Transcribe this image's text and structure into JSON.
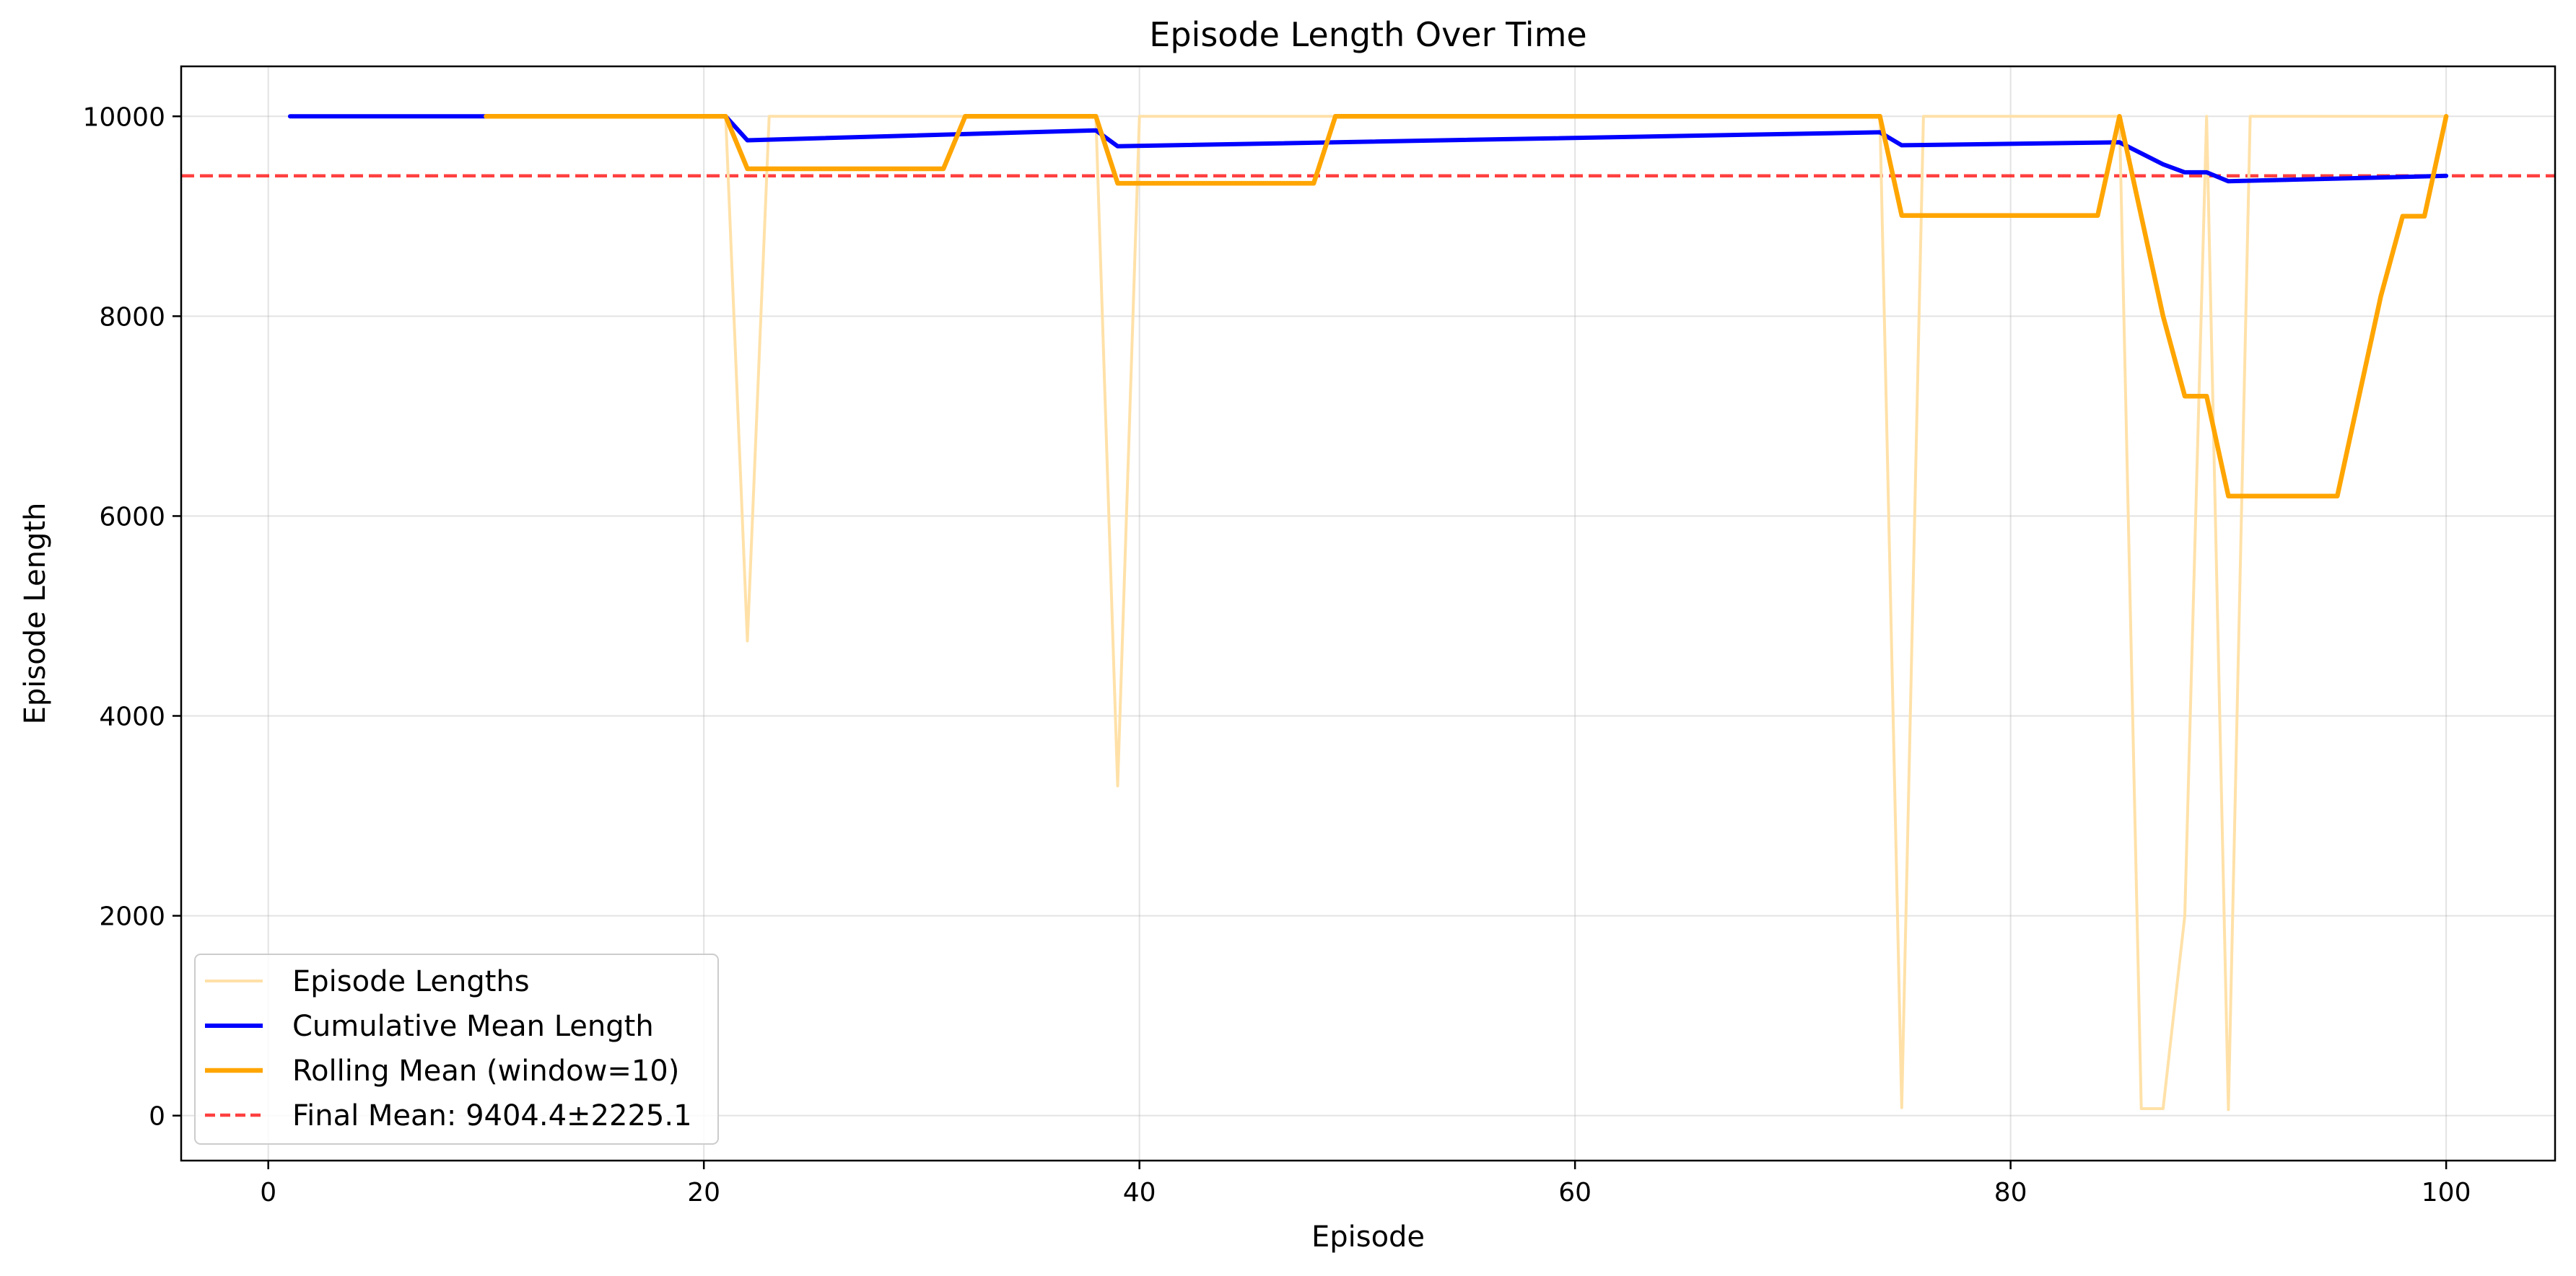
{
  "chart_data": {
    "type": "line",
    "title": "Episode Length Over Time",
    "xlabel": "Episode",
    "ylabel": "Episode Length",
    "xlim": [
      -4,
      105
    ],
    "ylim": [
      -450,
      10500
    ],
    "xticks": [
      0,
      20,
      40,
      60,
      80,
      100
    ],
    "yticks": [
      0,
      2000,
      4000,
      6000,
      8000,
      10000
    ],
    "grid": true,
    "legend_position": "lower-left",
    "series": [
      {
        "name": "Episode Lengths",
        "color": "#ffe1a8",
        "style": "solid",
        "x": [
          1,
          2,
          3,
          4,
          5,
          6,
          7,
          8,
          9,
          10,
          11,
          12,
          13,
          14,
          15,
          16,
          17,
          18,
          19,
          20,
          21,
          22,
          23,
          24,
          25,
          26,
          27,
          28,
          29,
          30,
          31,
          32,
          33,
          34,
          35,
          36,
          37,
          38,
          39,
          40,
          41,
          42,
          43,
          44,
          45,
          46,
          47,
          48,
          49,
          50,
          51,
          52,
          53,
          54,
          55,
          56,
          57,
          58,
          59,
          60,
          61,
          62,
          63,
          64,
          65,
          66,
          67,
          68,
          69,
          70,
          71,
          72,
          73,
          74,
          75,
          76,
          77,
          78,
          79,
          80,
          81,
          82,
          83,
          84,
          85,
          86,
          87,
          88,
          89,
          90,
          91,
          92,
          93,
          94,
          95,
          96,
          97,
          98,
          99,
          100
        ],
        "y": [
          10000,
          10000,
          10000,
          10000,
          10000,
          10000,
          10000,
          10000,
          10000,
          10000,
          10000,
          10000,
          10000,
          10000,
          10000,
          10000,
          10000,
          10000,
          10000,
          10000,
          10000,
          4750,
          10000,
          10000,
          10000,
          10000,
          10000,
          10000,
          10000,
          10000,
          10000,
          10000,
          10000,
          10000,
          10000,
          10000,
          10000,
          10000,
          3300,
          10000,
          10000,
          10000,
          10000,
          10000,
          10000,
          10000,
          10000,
          10000,
          10000,
          10000,
          10000,
          10000,
          10000,
          10000,
          10000,
          10000,
          10000,
          10000,
          10000,
          10000,
          10000,
          10000,
          10000,
          10000,
          10000,
          10000,
          10000,
          10000,
          10000,
          10000,
          10000,
          10000,
          10000,
          10000,
          80,
          10000,
          10000,
          10000,
          10000,
          10000,
          10000,
          10000,
          10000,
          10000,
          10000,
          70,
          70,
          2000,
          10000,
          60,
          10000,
          10000,
          10000,
          10000,
          10000,
          10000,
          10000,
          10000,
          10000,
          10000
        ]
      },
      {
        "name": "Cumulative Mean Length",
        "color": "#0000ff",
        "style": "solid",
        "x": [
          1,
          10,
          21,
          22,
          38,
          39,
          74,
          75,
          85,
          87,
          88,
          89,
          90,
          100
        ],
        "y": [
          10000,
          10000,
          10000,
          9760,
          9860,
          9700,
          9840,
          9710,
          9740,
          9520,
          9440,
          9440,
          9350,
          9404
        ]
      },
      {
        "name": "Rolling Mean (window=10)",
        "color": "#ffa500",
        "style": "solid",
        "x": [
          10,
          21,
          22,
          31,
          32,
          38,
          39,
          48,
          49,
          74,
          75,
          84,
          85,
          86,
          87,
          88,
          89,
          90,
          95,
          96,
          97,
          98,
          99,
          100
        ],
        "y": [
          10000,
          10000,
          9475,
          9475,
          10000,
          10000,
          9330,
          9330,
          10000,
          10000,
          9008,
          9008,
          10000,
          9000,
          8000,
          7200,
          7200,
          6200,
          6200,
          7200,
          8200,
          9000,
          9000,
          10000
        ]
      }
    ],
    "hlines": [
      {
        "name": "Final Mean: 9404.4±2225.1",
        "value": 9404.4,
        "color": "#ff0000",
        "style": "dashed"
      }
    ]
  }
}
